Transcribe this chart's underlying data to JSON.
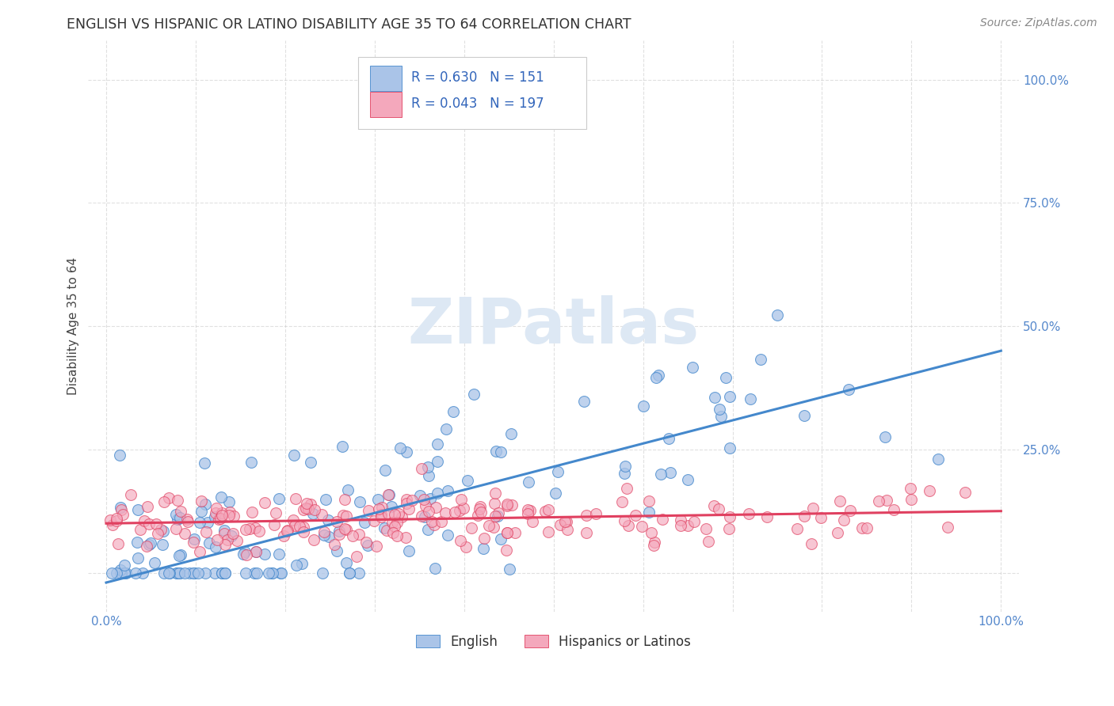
{
  "title": "ENGLISH VS HISPANIC OR LATINO DISABILITY AGE 35 TO 64 CORRELATION CHART",
  "source": "Source: ZipAtlas.com",
  "ylabel": "Disability Age 35 to 64",
  "legend_labels": [
    "English",
    "Hispanics or Latinos"
  ],
  "R_english": 0.63,
  "N_english": 151,
  "R_hispanic": 0.043,
  "N_hispanic": 197,
  "english_scatter_color": "#aac4e8",
  "english_line_color": "#4488cc",
  "hispanic_scatter_color": "#f4a8bc",
  "hispanic_line_color": "#e04060",
  "background_color": "#ffffff",
  "grid_color": "#cccccc",
  "tick_color": "#5588cc",
  "watermark_color": "#dde8f4",
  "title_color": "#333333",
  "source_color": "#888888",
  "ylabel_color": "#444444",
  "legend_text_color": "#3366bb",
  "legend_border_color": "#cccccc",
  "xlim": [
    -0.02,
    1.02
  ],
  "ylim": [
    -0.08,
    1.08
  ],
  "x_ticks": [
    0.0,
    0.1,
    0.2,
    0.3,
    0.4,
    0.5,
    0.6,
    0.7,
    0.8,
    0.9,
    1.0
  ],
  "y_ticks": [
    0.0,
    0.25,
    0.5,
    0.75,
    1.0
  ],
  "eng_line_x0": 0.0,
  "eng_line_y0": -0.02,
  "eng_line_x1": 1.0,
  "eng_line_y1": 0.45,
  "hisp_line_x0": 0.0,
  "hisp_line_y0": 0.1,
  "hisp_line_x1": 1.0,
  "hisp_line_y1": 0.125
}
